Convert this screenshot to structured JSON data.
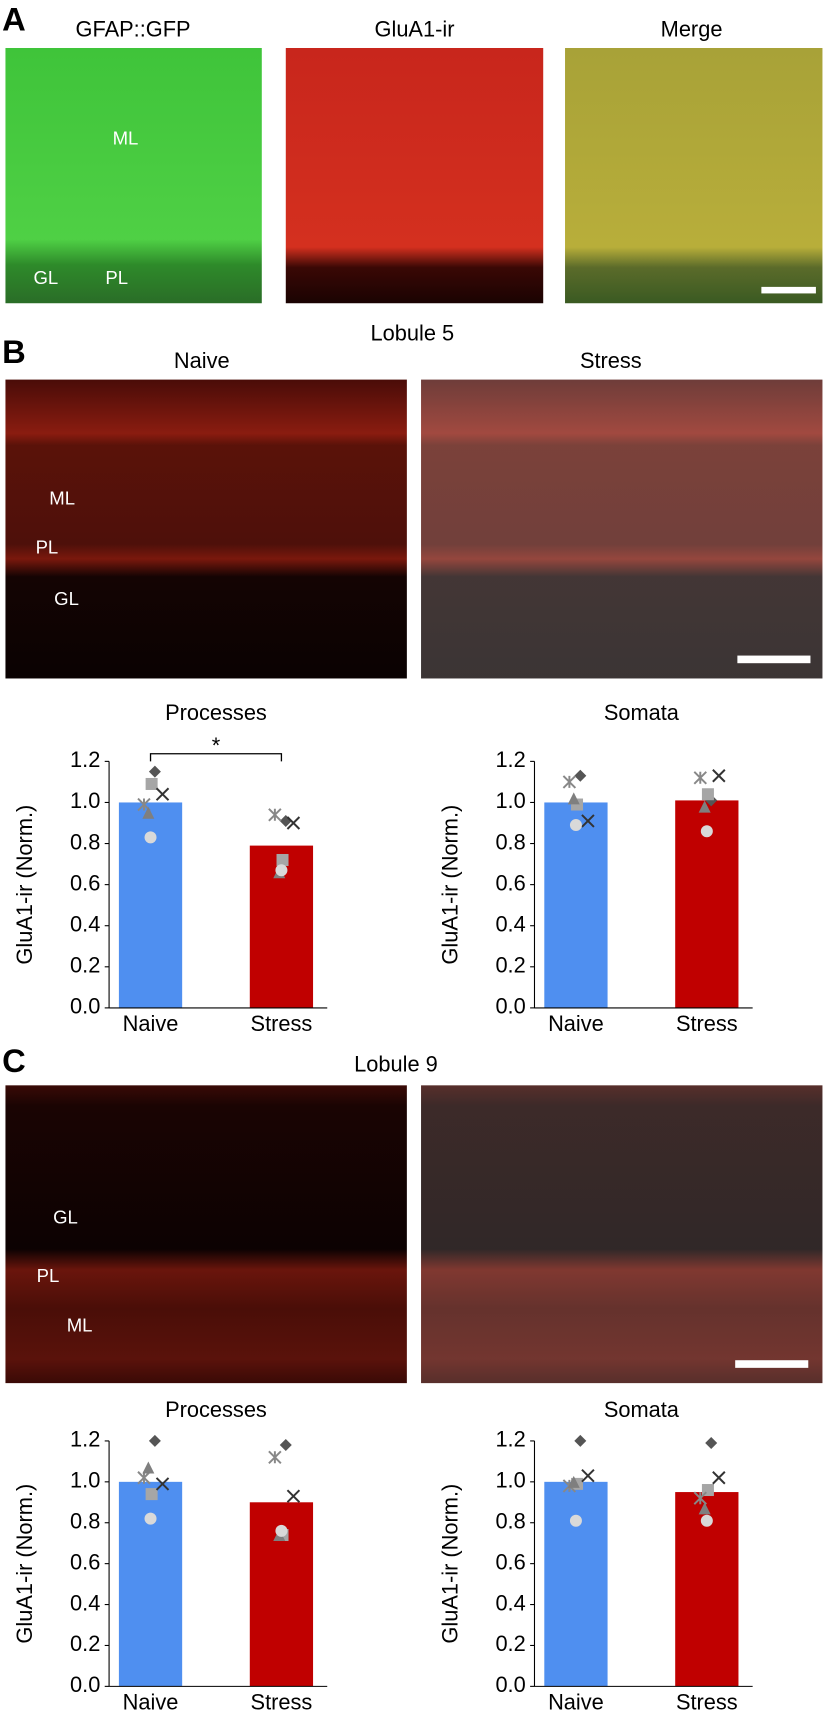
{
  "figure": {
    "panel_labels": [
      "A",
      "B",
      "C"
    ],
    "panel_a": {
      "titles": [
        "GFAP::GFP",
        "GluA1-ir",
        "Merge"
      ],
      "region_labels": [
        "ML",
        "GL",
        "PL"
      ]
    },
    "panel_b": {
      "heading": "Lobule 5",
      "columns": [
        "Naive",
        "Stress"
      ],
      "region_labels": [
        "ML",
        "PL",
        "GL"
      ]
    },
    "panel_c": {
      "heading": "Lobule 9",
      "region_labels": [
        "GL",
        "PL",
        "ML"
      ]
    }
  },
  "chart_data": [
    {
      "type": "bar",
      "title": "Processes",
      "y_label": "GluA1-ir (Norm.)",
      "categories": [
        "Naive",
        "Stress"
      ],
      "values": [
        1.0,
        0.79
      ],
      "colors": [
        "#4f8ff0",
        "#c00000"
      ],
      "ylim": [
        0,
        1.2
      ],
      "yticks": [
        {
          "value": 0,
          "label": "0.0"
        },
        0.2,
        0.4,
        0.6,
        0.8,
        {
          "value": 1,
          "label": "1.0"
        },
        1.2
      ],
      "annotations": [
        "*"
      ],
      "points": [
        {
          "marker": "diamond",
          "color": "#555555",
          "values": [
            1.15,
            0.91
          ]
        },
        {
          "marker": "square",
          "color": "#a6a6a6",
          "values": [
            1.09,
            0.72
          ]
        },
        {
          "marker": "x",
          "color": "#333333",
          "values": [
            1.04,
            0.9
          ]
        },
        {
          "marker": "star",
          "color": "#888888",
          "values": [
            0.99,
            0.94
          ]
        },
        {
          "marker": "triangle",
          "color": "#7f7f7f",
          "values": [
            0.95,
            0.66
          ]
        },
        {
          "marker": "circle",
          "color": "#d9d9d9",
          "values": [
            0.83,
            0.67
          ]
        }
      ]
    },
    {
      "type": "bar",
      "title": "Somata",
      "y_label": "GluA1-ir (Norm.)",
      "categories": [
        "Naive",
        "Stress"
      ],
      "values": [
        1.0,
        1.01
      ],
      "colors": [
        "#4f8ff0",
        "#c00000"
      ],
      "ylim": [
        0,
        1.2
      ],
      "yticks": [
        {
          "value": 0,
          "label": "0.0"
        },
        0.2,
        0.4,
        0.6,
        0.8,
        {
          "value": 1,
          "label": "1.0"
        },
        1.2
      ],
      "points": [
        {
          "marker": "diamond",
          "color": "#555555",
          "values": [
            1.13,
            1.01
          ]
        },
        {
          "marker": "square",
          "color": "#a6a6a6",
          "values": [
            0.99,
            1.04
          ]
        },
        {
          "marker": "x",
          "color": "#333333",
          "values": [
            0.91,
            1.13
          ]
        },
        {
          "marker": "star",
          "color": "#888888",
          "values": [
            1.1,
            1.12
          ]
        },
        {
          "marker": "triangle",
          "color": "#7f7f7f",
          "values": [
            1.02,
            0.98
          ]
        },
        {
          "marker": "circle",
          "color": "#d9d9d9",
          "values": [
            0.89,
            0.86
          ]
        }
      ]
    },
    {
      "type": "bar",
      "title": "Processes",
      "y_label": "GluA1-ir (Norm.)",
      "categories": [
        "Naive",
        "Stress"
      ],
      "values": [
        1.0,
        0.9
      ],
      "colors": [
        "#4f8ff0",
        "#c00000"
      ],
      "ylim": [
        0,
        1.2
      ],
      "yticks": [
        {
          "value": 0,
          "label": "0.0"
        },
        0.2,
        0.4,
        0.6,
        0.8,
        {
          "value": 1,
          "label": "1.0"
        },
        1.2
      ],
      "points": [
        {
          "marker": "diamond",
          "color": "#555555",
          "values": [
            1.2,
            1.18
          ]
        },
        {
          "marker": "square",
          "color": "#a6a6a6",
          "values": [
            0.94,
            0.74
          ]
        },
        {
          "marker": "x",
          "color": "#333333",
          "values": [
            0.99,
            0.93
          ]
        },
        {
          "marker": "star",
          "color": "#888888",
          "values": [
            1.02,
            1.12
          ]
        },
        {
          "marker": "triangle",
          "color": "#7f7f7f",
          "values": [
            1.07,
            0.74
          ]
        },
        {
          "marker": "circle",
          "color": "#d9d9d9",
          "values": [
            0.82,
            0.76
          ]
        }
      ]
    },
    {
      "type": "bar",
      "title": "Somata",
      "y_label": "GluA1-ir (Norm.)",
      "categories": [
        "Naive",
        "Stress"
      ],
      "values": [
        1.0,
        0.95
      ],
      "colors": [
        "#4f8ff0",
        "#c00000"
      ],
      "ylim": [
        0,
        1.2
      ],
      "yticks": [
        {
          "value": 0,
          "label": "0.0"
        },
        0.2,
        0.4,
        0.6,
        0.8,
        {
          "value": 1,
          "label": "1.0"
        },
        1.2
      ],
      "points": [
        {
          "marker": "diamond",
          "color": "#555555",
          "values": [
            1.2,
            1.19
          ]
        },
        {
          "marker": "square",
          "color": "#a6a6a6",
          "values": [
            0.99,
            0.96
          ]
        },
        {
          "marker": "x",
          "color": "#333333",
          "values": [
            1.03,
            1.02
          ]
        },
        {
          "marker": "star",
          "color": "#888888",
          "values": [
            0.98,
            0.92
          ]
        },
        {
          "marker": "triangle",
          "color": "#7f7f7f",
          "values": [
            1.0,
            0.87
          ]
        },
        {
          "marker": "circle",
          "color": "#d9d9d9",
          "values": [
            0.81,
            0.81
          ]
        }
      ]
    }
  ]
}
